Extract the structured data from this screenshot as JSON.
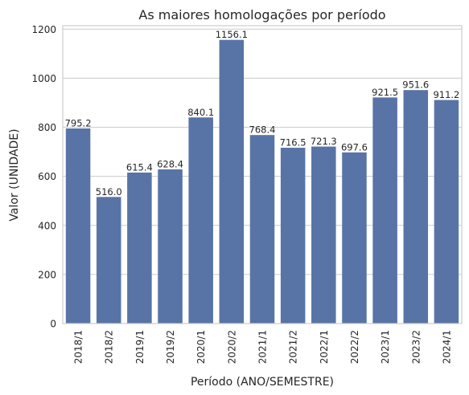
{
  "chart_data": {
    "type": "bar",
    "title": "As maiores homologações por período",
    "xlabel": "Período (ANO/SEMESTRE)",
    "ylabel": "Valor (UNIDADE)",
    "categories": [
      "2018/1",
      "2018/2",
      "2019/1",
      "2019/2",
      "2020/1",
      "2020/2",
      "2021/1",
      "2021/2",
      "2022/1",
      "2022/2",
      "2023/1",
      "2023/2",
      "2024/1"
    ],
    "values": [
      795.2,
      516.0,
      615.4,
      628.4,
      840.1,
      1156.1,
      768.4,
      716.5,
      721.3,
      697.6,
      921.5,
      951.6,
      911.2
    ],
    "value_labels": [
      "795.2",
      "516.0",
      "615.4",
      "628.4",
      "840.1",
      "1156.1",
      "768.4",
      "716.5",
      "721.3",
      "697.6",
      "921.5",
      "951.6",
      "911.2"
    ],
    "ylim": [
      0,
      1214
    ],
    "yticks": [
      0,
      200,
      400,
      600,
      800,
      1000,
      1200
    ],
    "ytick_labels": [
      "0",
      "200",
      "400",
      "600",
      "800",
      "1000",
      "1200"
    ],
    "grid": "horizontal",
    "bar_color": "#5874a6",
    "background": "#ffffff",
    "grid_color": "#cccccc"
  }
}
